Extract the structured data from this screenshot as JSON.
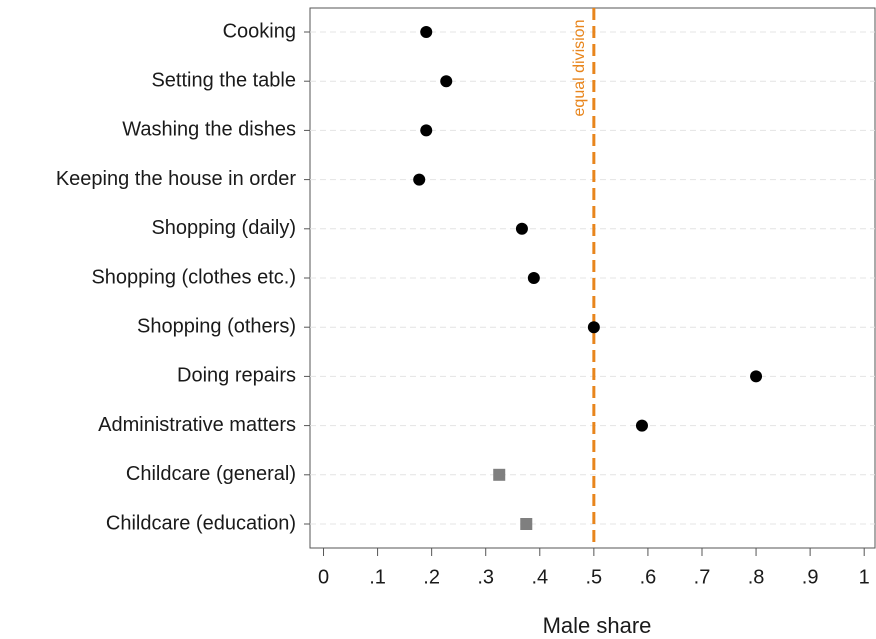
{
  "chart_data": {
    "type": "dot",
    "categories": [
      "Cooking",
      "Setting the table",
      "Washing the dishes",
      "Keeping the house in order",
      "Shopping (daily)",
      "Shopping (clothes etc.)",
      "Shopping (others)",
      "Doing repairs",
      "Administrative matters",
      "Childcare (general)",
      "Childcare (education)"
    ],
    "series": [
      {
        "color": "#000000",
        "marker": "circle",
        "values": [
          0.19,
          0.227,
          0.19,
          0.177,
          0.367,
          0.389,
          0.5,
          0.8,
          0.589,
          null,
          null
        ]
      },
      {
        "color": "#7f7f7f",
        "marker": "square",
        "values": [
          null,
          null,
          null,
          null,
          null,
          null,
          null,
          null,
          null,
          0.325,
          0.375
        ]
      }
    ],
    "xlabel": "Male share",
    "xlim": [
      -0.025,
      1.02
    ],
    "xticks": [
      0,
      {
        "value": 0.1,
        "label": ".1"
      },
      {
        "value": 0.2,
        "label": ".2"
      },
      {
        "value": 0.3,
        "label": ".3"
      },
      {
        "value": 0.4,
        "label": ".4"
      },
      {
        "value": 0.5,
        "label": ".5"
      },
      {
        "value": 0.6,
        "label": ".6"
      },
      {
        "value": 0.7,
        "label": ".7"
      },
      {
        "value": 0.8,
        "label": ".8"
      },
      {
        "value": 0.9,
        "label": ".9"
      },
      1
    ],
    "grid": true,
    "reference_line": {
      "x": 0.5,
      "label": "equal division",
      "color": "#e8851c"
    }
  }
}
